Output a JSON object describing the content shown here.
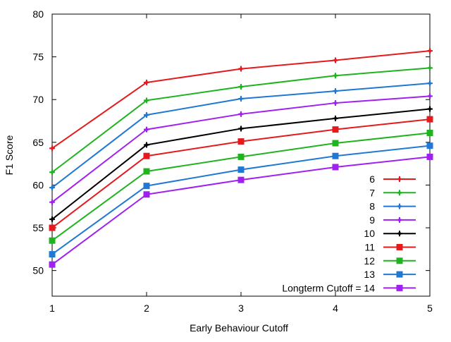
{
  "chart_data": {
    "type": "line",
    "title": "",
    "xlabel": "Early Behaviour Cutoff",
    "ylabel": "F1 Score",
    "x": [
      1,
      2,
      3,
      4,
      5
    ],
    "xticks": [
      "1",
      "2",
      "3",
      "4",
      "5"
    ],
    "yticks": [
      "50",
      "55",
      "60",
      "65",
      "70",
      "75",
      "80"
    ],
    "xlim": [
      1,
      5
    ],
    "ylim": [
      47,
      80
    ],
    "grid": false,
    "legend_position": "bottom-right",
    "series": [
      {
        "name": "6",
        "color": "#e41a1c",
        "marker": "plus",
        "values": [
          64.3,
          72.0,
          73.6,
          74.6,
          75.7
        ]
      },
      {
        "name": "7",
        "color": "#1fb41f",
        "marker": "plus",
        "values": [
          61.5,
          69.9,
          71.5,
          72.8,
          73.7
        ]
      },
      {
        "name": "8",
        "color": "#1f78d4",
        "marker": "plus",
        "values": [
          59.7,
          68.2,
          70.1,
          71.0,
          71.9
        ]
      },
      {
        "name": "9",
        "color": "#a020f0",
        "marker": "plus",
        "values": [
          58.0,
          66.5,
          68.3,
          69.6,
          70.4
        ]
      },
      {
        "name": "10",
        "color": "#000000",
        "marker": "plus",
        "values": [
          56.0,
          64.7,
          66.6,
          67.8,
          68.9
        ]
      },
      {
        "name": "11",
        "color": "#e41a1c",
        "marker": "square",
        "values": [
          55.0,
          63.4,
          65.1,
          66.5,
          67.7
        ]
      },
      {
        "name": "12",
        "color": "#1fb41f",
        "marker": "square",
        "values": [
          53.5,
          61.6,
          63.3,
          64.9,
          66.1
        ]
      },
      {
        "name": "13",
        "color": "#1f78d4",
        "marker": "square",
        "values": [
          51.9,
          59.9,
          61.8,
          63.4,
          64.6
        ]
      },
      {
        "name": "Longterm Cutoff = 14",
        "color": "#a020f0",
        "marker": "square",
        "values": [
          50.7,
          58.9,
          60.6,
          62.1,
          63.3
        ]
      }
    ]
  }
}
